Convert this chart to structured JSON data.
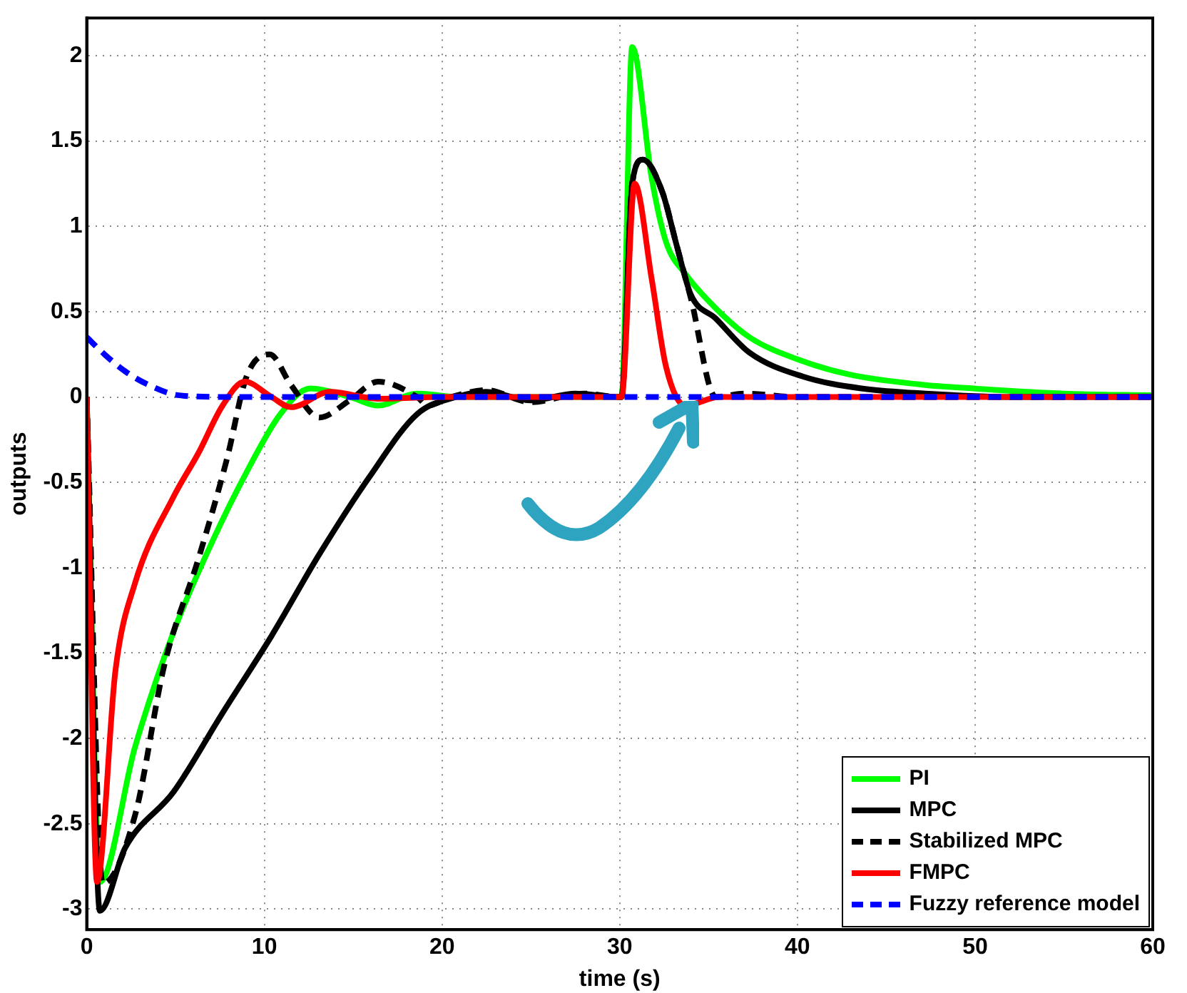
{
  "chart_data": {
    "type": "line",
    "xlabel": "time (s)",
    "ylabel": "outputs",
    "xlim": [
      0,
      60
    ],
    "xticks": [
      0,
      10,
      20,
      30,
      40,
      50,
      60
    ],
    "ylim": [
      -3.12,
      2.22
    ],
    "yticks": [
      -3,
      -2.5,
      -2,
      -1.5,
      -1,
      -0.5,
      0,
      0.5,
      1,
      1.5,
      2
    ],
    "grid": true,
    "legend": "bottom right",
    "marker": "none",
    "line_style": "solid",
    "series": [
      {
        "name": "PI",
        "color": "#00ff00",
        "x": [
          0,
          0.74,
          2.72,
          4.91,
          7.1,
          9.0,
          10.9,
          12.6,
          14.8,
          16.4,
          18.6,
          21,
          30,
          30.1,
          30.7,
          31.8,
          32.6,
          33.7,
          35.4,
          37.3,
          40.3,
          43.0,
          47.2,
          49.9,
          55,
          60
        ],
        "values": [
          0,
          -2.84,
          -2.05,
          -1.37,
          -0.84,
          -0.44,
          -0.1,
          0.05,
          0,
          -0.05,
          0.02,
          0,
          0,
          0,
          2.05,
          1.28,
          0.91,
          0.72,
          0.52,
          0.35,
          0.21,
          0.13,
          0.07,
          0.05,
          0.02,
          0.01
        ]
      },
      {
        "name": "MPC",
        "color": "#000000",
        "x": [
          0,
          0.74,
          2.17,
          4.91,
          7.65,
          10.4,
          13.1,
          15.9,
          18.6,
          20.8,
          22.5,
          25,
          27.5,
          30,
          30.1,
          30.7,
          31.3,
          32.4,
          33.2,
          34.0,
          35.4,
          37.3,
          40.3,
          43.6,
          47.2,
          52,
          60
        ],
        "values": [
          0,
          -3.01,
          -2.64,
          -2.31,
          -1.85,
          -1.4,
          -0.92,
          -0.47,
          -0.1,
          0,
          0.03,
          -0.02,
          0.02,
          0,
          0,
          1.25,
          1.39,
          1.2,
          0.89,
          0.6,
          0.46,
          0.26,
          0.12,
          0.05,
          0.02,
          0,
          0
        ]
      },
      {
        "name": "Stabilized MPC",
        "color": "#000000",
        "line_style": "dashed",
        "x": [
          0,
          0.9,
          2.72,
          4.37,
          6.28,
          7.9,
          9.0,
          10.3,
          11.5,
          13.1,
          14.8,
          16.4,
          18.6,
          19.2,
          20.5,
          22.5,
          25,
          28,
          30,
          30.1,
          30.7,
          31.3,
          32.4,
          33.2,
          34.0,
          35.4,
          37,
          40,
          60
        ],
        "values": [
          0,
          -2.85,
          -2.45,
          -1.57,
          -0.95,
          -0.36,
          0.12,
          0.25,
          0.07,
          -0.12,
          -0.02,
          0.09,
          0,
          -0.05,
          0,
          0.04,
          -0.03,
          0.02,
          0,
          0,
          1.25,
          1.39,
          1.2,
          0.89,
          0.58,
          0,
          0.02,
          0,
          0
        ]
      },
      {
        "name": "FMPC",
        "color": "#ff0000",
        "x": [
          0,
          0.58,
          1.62,
          2.72,
          4.91,
          6.28,
          7.65,
          8.89,
          10.4,
          11.5,
          13.7,
          16.4,
          20,
          30,
          30.1,
          30.84,
          31.8,
          32.6,
          33.7,
          35.6,
          40,
          60
        ],
        "values": [
          0,
          -2.84,
          -1.6,
          -1.09,
          -0.58,
          -0.33,
          -0.05,
          0.09,
          0,
          -0.06,
          0.03,
          -0.01,
          0,
          0,
          0,
          1.25,
          0.69,
          0.18,
          -0.05,
          0,
          0,
          0
        ]
      },
      {
        "name": "Fuzzy reference model",
        "color": "#0000ff",
        "line_style": "dashed",
        "x": [
          0,
          1,
          2.17,
          3.5,
          5.2,
          8,
          60
        ],
        "values": [
          0.35,
          0.25,
          0.15,
          0.07,
          0.01,
          0,
          0
        ]
      }
    ]
  }
}
